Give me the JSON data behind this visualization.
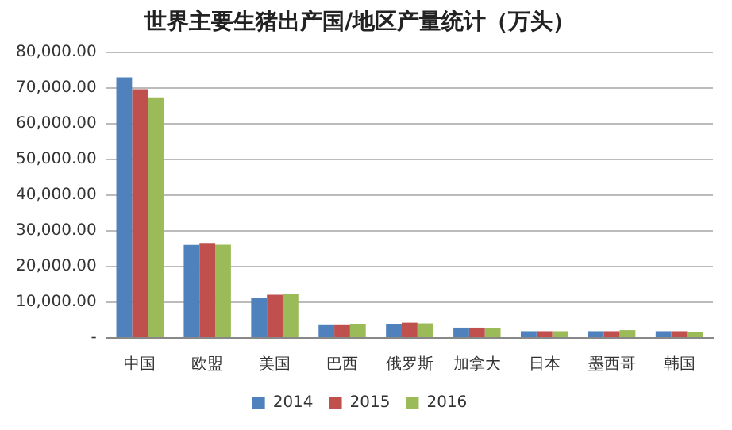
{
  "chart_data": {
    "type": "bar",
    "title": "世界主要生猪出产国/地区产量统计（万头）",
    "categories": [
      "中国",
      "欧盟",
      "美国",
      "巴西",
      "俄罗斯",
      "加拿大",
      "日本",
      "墨西哥",
      "韩国"
    ],
    "series": [
      {
        "name": "2014",
        "color": "#4f81bd",
        "values": [
          72900,
          26000,
          11300,
          3600,
          3800,
          2900,
          1900,
          1900,
          1900
        ]
      },
      {
        "name": "2015",
        "color": "#c0504d",
        "values": [
          69600,
          26600,
          12100,
          3600,
          4300,
          2900,
          1900,
          1900,
          1900
        ]
      },
      {
        "name": "2016",
        "color": "#9bbb59",
        "values": [
          67300,
          26100,
          12400,
          3900,
          4100,
          2800,
          1900,
          2200,
          1700
        ]
      }
    ],
    "ylim": [
      0,
      80000
    ],
    "yticks": [
      {
        "value": 0,
        "label": "-"
      },
      {
        "value": 10000,
        "label": "10,000.00"
      },
      {
        "value": 20000,
        "label": "20,000.00"
      },
      {
        "value": 30000,
        "label": "30,000.00"
      },
      {
        "value": 40000,
        "label": "40,000.00"
      },
      {
        "value": 50000,
        "label": "50,000.00"
      },
      {
        "value": 60000,
        "label": "60,000.00"
      },
      {
        "value": 70000,
        "label": "70,000.00"
      },
      {
        "value": 80000,
        "label": "80,000.00"
      }
    ],
    "grid": "y",
    "legend": "bottom"
  }
}
